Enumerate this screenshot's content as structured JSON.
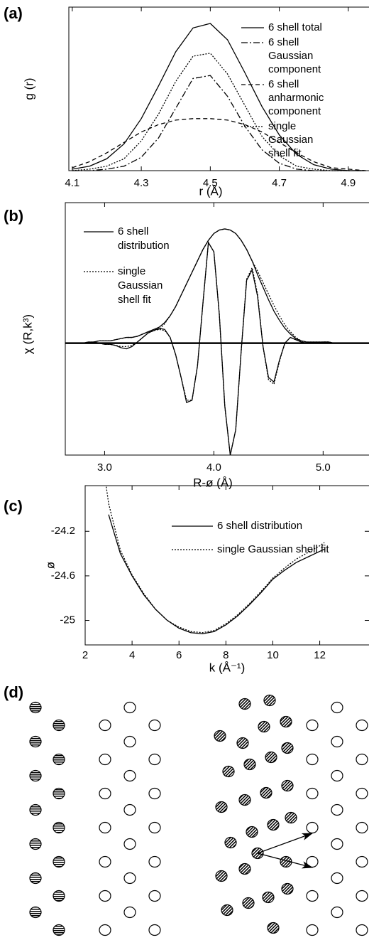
{
  "chart_data": [
    {
      "type": "line",
      "panel_label": "(a)",
      "xlabel": "r (Å)",
      "ylabel": "g (r)",
      "x": [
        4.1,
        4.15,
        4.2,
        4.25,
        4.3,
        4.35,
        4.4,
        4.45,
        4.5,
        4.55,
        4.6,
        4.65,
        4.7,
        4.75,
        4.8,
        4.85,
        4.9,
        4.95
      ],
      "xlim": [
        4.09,
        4.96
      ],
      "xticks": [
        4.1,
        4.3,
        4.5,
        4.7,
        4.9
      ],
      "ylim": [
        0,
        1.1
      ],
      "series": [
        {
          "name": "6 shell total",
          "color": "#000000",
          "style": "solid",
          "values": [
            0.01,
            0.03,
            0.08,
            0.18,
            0.35,
            0.57,
            0.8,
            0.96,
            0.99,
            0.88,
            0.66,
            0.43,
            0.24,
            0.11,
            0.04,
            0.01,
            0.0,
            0.0
          ]
        },
        {
          "name": "6 shell\nGaussian\ncomponent",
          "color": "#000000",
          "style": "dashdot",
          "values": [
            0,
            0,
            0.01,
            0.03,
            0.09,
            0.22,
            0.42,
            0.62,
            0.64,
            0.5,
            0.3,
            0.14,
            0.05,
            0.01,
            0,
            0,
            0,
            0
          ]
        },
        {
          "name": "6 shell\nanharmonic\ncomponent",
          "color": "#000000",
          "style": "dashed",
          "values": [
            0.02,
            0.06,
            0.12,
            0.19,
            0.26,
            0.31,
            0.34,
            0.35,
            0.35,
            0.34,
            0.31,
            0.26,
            0.19,
            0.12,
            0.06,
            0.02,
            0.01,
            0
          ]
        },
        {
          "name": "single\nGaussian\nshell fit",
          "color": "#000000",
          "style": "dotted",
          "values": [
            0,
            0.01,
            0.03,
            0.08,
            0.2,
            0.38,
            0.6,
            0.77,
            0.79,
            0.65,
            0.44,
            0.23,
            0.1,
            0.03,
            0.01,
            0,
            0,
            0
          ]
        }
      ]
    },
    {
      "type": "line",
      "panel_label": "(b)",
      "xlabel": "R-ø (Å)",
      "ylabel": "χ (R,k³)",
      "x": [
        2.8,
        2.85,
        2.9,
        2.95,
        3.0,
        3.05,
        3.1,
        3.15,
        3.2,
        3.25,
        3.3,
        3.35,
        3.4,
        3.45,
        3.5,
        3.55,
        3.6,
        3.65,
        3.7,
        3.75,
        3.8,
        3.85,
        3.9,
        3.95,
        4.0,
        4.05,
        4.1,
        4.15,
        4.2,
        4.25,
        4.3,
        4.35,
        4.4,
        4.45,
        4.5,
        4.55,
        4.6,
        4.65,
        4.7,
        4.75,
        4.8,
        4.85,
        4.9,
        4.95,
        5.0,
        5.05,
        5.1,
        5.15,
        5.2
      ],
      "xlim": [
        2.64,
        5.42
      ],
      "xticks": [
        {
          "value": 3,
          "label": "3.0"
        },
        {
          "value": 4,
          "label": "4.0"
        },
        {
          "value": 5,
          "label": "5.0"
        }
      ],
      "ylim": [
        -0.98,
        1.23
      ],
      "series": [
        {
          "name": "6 shell\ndistribution",
          "color": "#000000",
          "style": "solid",
          "values": [
            0,
            0.01,
            0.01,
            0.02,
            0.02,
            0.02,
            0.03,
            0.04,
            0.05,
            0.05,
            0.06,
            0.08,
            0.1,
            0.12,
            0.14,
            0.18,
            0.24,
            0.32,
            0.42,
            0.52,
            0.62,
            0.72,
            0.82,
            0.9,
            0.96,
            0.99,
            1.0,
            0.99,
            0.96,
            0.9,
            0.82,
            0.72,
            0.6,
            0.49,
            0.38,
            0.28,
            0.2,
            0.13,
            0.08,
            0.04,
            0.02,
            0.01,
            0.01,
            0.01,
            0.01,
            0.01,
            0,
            0,
            0
          ],
          "real": [
            0,
            0,
            0.01,
            0,
            -0.01,
            -0.01,
            -0.02,
            -0.04,
            -0.05,
            -0.03,
            0.01,
            0.05,
            0.09,
            0.11,
            0.13,
            0.12,
            0.05,
            -0.1,
            -0.3,
            -0.52,
            -0.5,
            -0.2,
            0.35,
            0.88,
            0.8,
            0.25,
            -0.55,
            -0.98,
            -0.76,
            -0.07,
            0.55,
            0.64,
            0.41,
            -0.03,
            -0.3,
            -0.34,
            -0.15,
            0,
            0.05,
            0.03,
            0.01,
            0,
            0,
            0,
            0.01,
            0.01,
            0,
            0,
            0
          ]
        },
        {
          "name": "single\nGaussian\nshell fit",
          "color": "#000000",
          "style": "dotted",
          "values": [
            0,
            0.01,
            0.01,
            0.02,
            0.02,
            0.02,
            0.03,
            0.04,
            0.05,
            0.05,
            0.06,
            0.08,
            0.1,
            0.12,
            0.12,
            0.17,
            0.24,
            0.32,
            0.42,
            0.52,
            0.62,
            0.72,
            0.82,
            0.9,
            0.96,
            0.99,
            1.0,
            0.99,
            0.96,
            0.9,
            0.82,
            0.72,
            0.63,
            0.53,
            0.43,
            0.33,
            0.24,
            0.16,
            0.1,
            0.05,
            0.02,
            0.01,
            0.01,
            0.01,
            0.01,
            0.01,
            0,
            0,
            0
          ],
          "real": [
            0,
            0,
            0.01,
            0,
            -0.01,
            -0.01,
            -0.02,
            -0.03,
            -0.03,
            -0.02,
            0.01,
            0.05,
            0.09,
            0.11,
            0.12,
            0.11,
            0.05,
            -0.1,
            -0.3,
            -0.5,
            -0.5,
            -0.2,
            0.35,
            0.88,
            0.8,
            0.25,
            -0.55,
            -0.98,
            -0.76,
            -0.07,
            0.56,
            0.66,
            0.43,
            -0.03,
            -0.32,
            -0.36,
            -0.16,
            0,
            0.05,
            0.03,
            0.01,
            0,
            0,
            0,
            0.01,
            0.01,
            0,
            0,
            0
          ]
        }
      ]
    },
    {
      "type": "line",
      "panel_label": "(c)",
      "xlabel": "k (Å⁻¹)",
      "ylabel": "ø",
      "x": [
        2.9,
        3,
        3.5,
        4,
        4.5,
        5,
        5.5,
        6,
        6.5,
        7,
        7.5,
        8,
        8.5,
        9,
        9.5,
        10,
        10.5,
        11,
        11.5,
        12,
        12.2
      ],
      "xlim": [
        2,
        14.1
      ],
      "xticks": [
        2,
        4,
        6,
        8,
        10,
        12
      ],
      "ylim": [
        -25.22,
        -23.79
      ],
      "yticks": [
        -24.2,
        -24.6,
        -25
      ],
      "series": [
        {
          "name": "6 shell distribution",
          "color": "#000000",
          "style": "solid",
          "values": [
            null,
            -24.05,
            -24.4,
            -24.6,
            -24.77,
            -24.9,
            -25.0,
            -25.07,
            -25.11,
            -25.12,
            -25.1,
            -25.04,
            -24.96,
            -24.86,
            -24.75,
            -24.63,
            -24.55,
            -24.48,
            -24.43,
            -24.38,
            -24.36
          ]
        },
        {
          "name": "single Gaussian shell fit",
          "color": "#000000",
          "style": "dotted",
          "values": [
            -23.8,
            -23.95,
            -24.37,
            -24.59,
            -24.76,
            -24.9,
            -25.0,
            -25.06,
            -25.1,
            -25.11,
            -25.09,
            -25.03,
            -24.95,
            -24.85,
            -24.74,
            -24.62,
            -24.53,
            -24.45,
            -24.39,
            -24.33,
            -24.3
          ]
        }
      ]
    }
  ],
  "diagram": {
    "panel_label": "(d)"
  }
}
